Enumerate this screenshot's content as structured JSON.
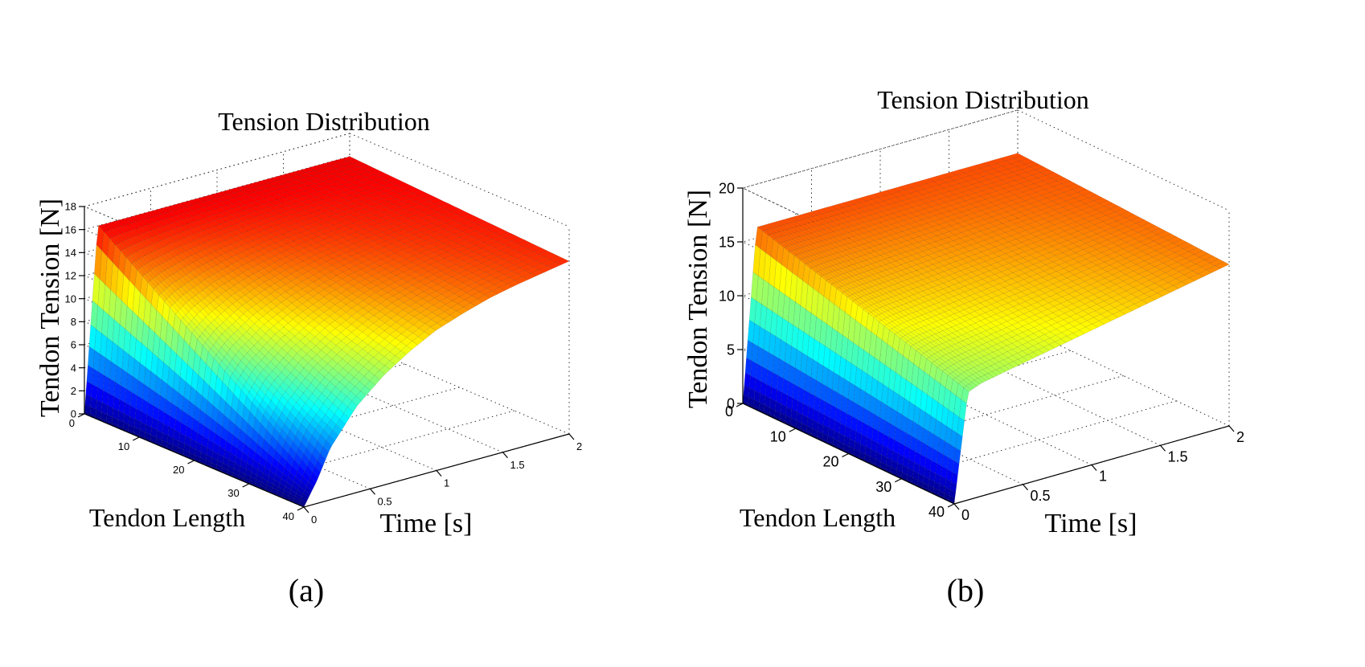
{
  "chart_data": [
    {
      "type": "surface",
      "panel_label": "(a)",
      "title": "Tension Distribution",
      "xlabel": "Time [s]",
      "ylabel": "Tendon Length",
      "zlabel": "Tendon Tension [N]",
      "colormap": "jet",
      "grid": true,
      "xlim": [
        0,
        2
      ],
      "ylim": [
        0,
        40
      ],
      "zlim": [
        0,
        18
      ],
      "x_ticks": [
        0,
        0.5,
        1,
        1.5,
        2
      ],
      "x_tick_labels": [
        "0",
        "0.5",
        "1",
        "1.5",
        "2"
      ],
      "y_ticks": [
        0,
        10,
        20,
        30,
        40
      ],
      "y_tick_labels": [
        "0",
        "10",
        "20",
        "30",
        "40"
      ],
      "z_ticks": [
        0,
        2,
        4,
        6,
        8,
        10,
        12,
        14,
        16,
        18
      ],
      "z_tick_labels": [
        "0",
        "2",
        "4",
        "6",
        "8",
        "10",
        "12",
        "14",
        "16",
        "18"
      ],
      "surface": {
        "t_samples": [
          0,
          0.1,
          0.2,
          0.4,
          0.6,
          0.8,
          1.0,
          1.2,
          1.4,
          1.6,
          1.8,
          2.0
        ],
        "tension_at_start": [
          0,
          16,
          16,
          16,
          16,
          16,
          16,
          16,
          16,
          16,
          16,
          16
        ],
        "tension_at_end": [
          0,
          2,
          4.5,
          7.5,
          9.5,
          11,
          12.2,
          13,
          13.7,
          14.2,
          14.6,
          15
        ]
      }
    },
    {
      "type": "surface",
      "panel_label": "(b)",
      "title": "Tension Distribution",
      "xlabel": "Time [s]",
      "ylabel": "Tendon Length",
      "zlabel": "Tendon Tension [N]",
      "colormap": "jet",
      "grid": true,
      "xlim": [
        0,
        2
      ],
      "ylim": [
        0,
        40
      ],
      "zlim": [
        0,
        20
      ],
      "x_ticks": [
        0,
        0.5,
        1,
        1.5,
        2
      ],
      "x_tick_labels": [
        "0",
        "0.5",
        "1",
        "1.5",
        "2"
      ],
      "y_ticks": [
        0,
        10,
        20,
        30,
        40
      ],
      "y_tick_labels": [
        "0",
        "10",
        "20",
        "30",
        "40"
      ],
      "z_ticks": [
        0,
        5,
        10,
        15,
        20
      ],
      "z_tick_labels": [
        "0",
        "5",
        "10",
        "15",
        "20"
      ],
      "surface": {
        "t_samples": [
          0,
          0.1,
          0.2,
          0.4,
          0.6,
          0.8,
          1.0,
          1.2,
          1.4,
          1.6,
          1.8,
          2.0
        ],
        "tension_at_start": [
          0,
          16,
          16,
          16,
          16,
          16,
          16,
          16,
          16,
          16,
          16,
          16
        ],
        "tension_at_end": [
          0,
          10,
          10.5,
          11,
          11.5,
          12,
          12.5,
          13,
          13.5,
          14,
          14.5,
          15
        ]
      }
    }
  ]
}
